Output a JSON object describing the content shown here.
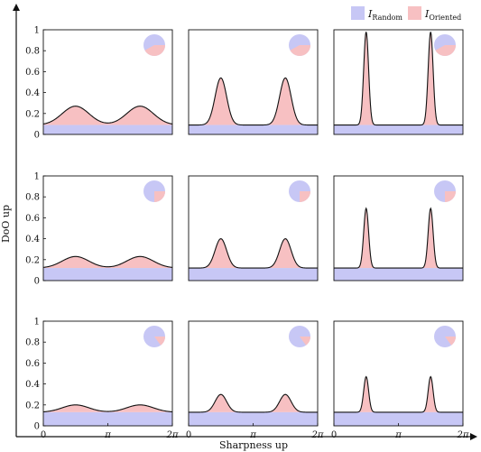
{
  "legend": {
    "items": [
      {
        "symbol": "I",
        "subscript": "Random",
        "color": "#c7c7f5"
      },
      {
        "symbol": "I",
        "subscript": "Oriented",
        "color": "#f7c0c2"
      }
    ]
  },
  "axes": {
    "ylabel": "DoO up",
    "xlabel": "Sharpness up",
    "y_ticks": [
      "0",
      "0.2",
      "0.4",
      "0.6",
      "0.8",
      "1"
    ],
    "x_ticks": [
      "0",
      "π",
      "2π"
    ]
  },
  "chart_data": [
    {
      "type": "area",
      "row": 1,
      "col": 1,
      "baseline": 0.09,
      "peak": 0.27,
      "peak_positions": [
        1.57,
        4.71
      ],
      "sharpness": "low",
      "ylim": [
        0,
        1
      ],
      "xlim": [
        0,
        6.283
      ],
      "pie_oriented_fraction": 0.42
    },
    {
      "type": "area",
      "row": 1,
      "col": 2,
      "baseline": 0.09,
      "peak": 0.54,
      "peak_positions": [
        1.57,
        4.71
      ],
      "sharpness": "medium",
      "ylim": [
        0,
        1
      ],
      "xlim": [
        0,
        6.283
      ],
      "pie_oriented_fraction": 0.42
    },
    {
      "type": "area",
      "row": 1,
      "col": 3,
      "baseline": 0.09,
      "peak": 0.98,
      "peak_positions": [
        1.57,
        4.71
      ],
      "sharpness": "high",
      "ylim": [
        0,
        1
      ],
      "xlim": [
        0,
        6.283
      ],
      "pie_oriented_fraction": 0.42
    },
    {
      "type": "area",
      "row": 2,
      "col": 1,
      "baseline": 0.12,
      "peak": 0.23,
      "peak_positions": [
        1.57,
        4.71
      ],
      "sharpness": "low",
      "ylim": [
        0,
        1
      ],
      "xlim": [
        0,
        6.283
      ],
      "pie_oriented_fraction": 0.25
    },
    {
      "type": "area",
      "row": 2,
      "col": 2,
      "baseline": 0.12,
      "peak": 0.4,
      "peak_positions": [
        1.57,
        4.71
      ],
      "sharpness": "medium",
      "ylim": [
        0,
        1
      ],
      "xlim": [
        0,
        6.283
      ],
      "pie_oriented_fraction": 0.25
    },
    {
      "type": "area",
      "row": 2,
      "col": 3,
      "baseline": 0.12,
      "peak": 0.69,
      "peak_positions": [
        1.57,
        4.71
      ],
      "sharpness": "high",
      "ylim": [
        0,
        1
      ],
      "xlim": [
        0,
        6.283
      ],
      "pie_oriented_fraction": 0.25
    },
    {
      "type": "area",
      "row": 3,
      "col": 1,
      "baseline": 0.13,
      "peak": 0.2,
      "peak_positions": [
        1.57,
        4.71
      ],
      "sharpness": "low",
      "ylim": [
        0,
        1
      ],
      "xlim": [
        0,
        6.283
      ],
      "pie_oriented_fraction": 0.15
    },
    {
      "type": "area",
      "row": 3,
      "col": 2,
      "baseline": 0.13,
      "peak": 0.3,
      "peak_positions": [
        1.57,
        4.71
      ],
      "sharpness": "medium",
      "ylim": [
        0,
        1
      ],
      "xlim": [
        0,
        6.283
      ],
      "pie_oriented_fraction": 0.15
    },
    {
      "type": "area",
      "row": 3,
      "col": 3,
      "baseline": 0.13,
      "peak": 0.47,
      "peak_positions": [
        1.57,
        4.71
      ],
      "sharpness": "high",
      "ylim": [
        0,
        1
      ],
      "xlim": [
        0,
        6.283
      ],
      "pie_oriented_fraction": 0.15
    }
  ]
}
